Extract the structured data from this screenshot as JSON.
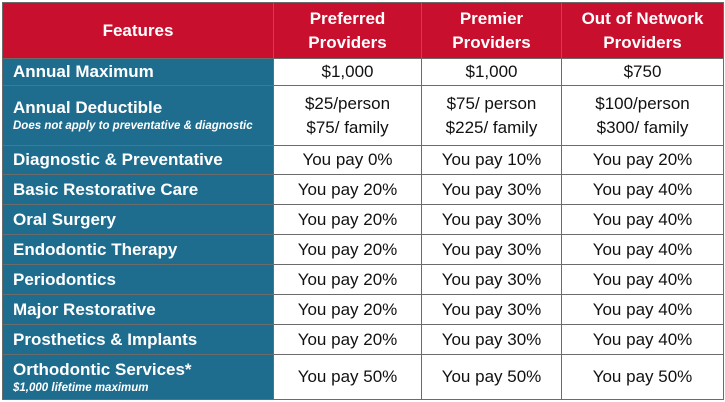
{
  "header": {
    "features": "Features",
    "col1": [
      "Preferred",
      "Providers"
    ],
    "col2": [
      "Premier",
      "Providers"
    ],
    "col3": [
      "Out of Network",
      "Providers"
    ]
  },
  "rows": [
    {
      "feature": "Annual Maximum",
      "note": "",
      "c1": [
        "$1,000"
      ],
      "c2": [
        "$1,000"
      ],
      "c3": [
        "$750"
      ]
    },
    {
      "feature": "Annual Deductible",
      "note": "Does not apply to preventative & diagnostic",
      "c1": [
        "$25/person",
        "$75/ family"
      ],
      "c2": [
        "$75/ person",
        "$225/ family"
      ],
      "c3": [
        "$100/person",
        "$300/ family"
      ]
    },
    {
      "feature": "Diagnostic & Preventative",
      "note": "",
      "c1": [
        "You pay 0%"
      ],
      "c2": [
        "You pay 10%"
      ],
      "c3": [
        "You pay 20%"
      ]
    },
    {
      "feature": "Basic Restorative Care",
      "note": "",
      "c1": [
        "You pay 20%"
      ],
      "c2": [
        "You pay 30%"
      ],
      "c3": [
        "You pay 40%"
      ]
    },
    {
      "feature": "Oral Surgery",
      "note": "",
      "c1": [
        "You pay 20%"
      ],
      "c2": [
        "You pay 30%"
      ],
      "c3": [
        "You pay 40%"
      ]
    },
    {
      "feature": "Endodontic Therapy",
      "note": "",
      "c1": [
        "You pay 20%"
      ],
      "c2": [
        "You pay 30%"
      ],
      "c3": [
        "You pay 40%"
      ]
    },
    {
      "feature": "Periodontics",
      "note": "",
      "c1": [
        "You pay 20%"
      ],
      "c2": [
        "You pay 30%"
      ],
      "c3": [
        "You pay 40%"
      ]
    },
    {
      "feature": "Major Restorative",
      "note": "",
      "c1": [
        "You pay 20%"
      ],
      "c2": [
        "You pay 30%"
      ],
      "c3": [
        "You pay 40%"
      ]
    },
    {
      "feature": "Prosthetics & Implants",
      "note": "",
      "c1": [
        "You pay 20%"
      ],
      "c2": [
        "You pay 30%"
      ],
      "c3": [
        "You pay 40%"
      ]
    },
    {
      "feature": "Orthodontic Services*",
      "note": "$1,000 lifetime maximum",
      "c1": [
        "You pay 50%"
      ],
      "c2": [
        "You pay 50%"
      ],
      "c3": [
        "You pay 50%"
      ]
    }
  ],
  "colors": {
    "header_bg": "#c8102e",
    "feature_bg": "#1e6d8f"
  }
}
